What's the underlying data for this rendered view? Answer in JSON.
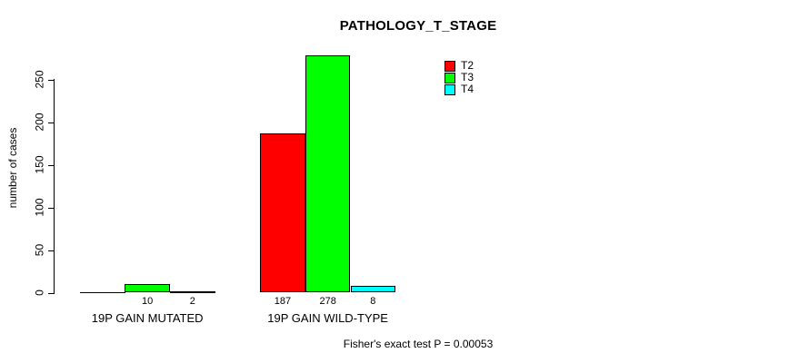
{
  "chart_data": {
    "type": "bar",
    "title": "PATHOLOGY_T_STAGE",
    "ylabel": "number of cases",
    "xlabel": "",
    "annotation": "Fisher's exact test P = 0.00053",
    "categories": [
      "19P GAIN MUTATED",
      "19P GAIN WILD-TYPE"
    ],
    "series": [
      {
        "name": "T2",
        "color": "#ff0000",
        "values": [
          0,
          187
        ]
      },
      {
        "name": "T3",
        "color": "#00ff00",
        "values": [
          10,
          278
        ]
      },
      {
        "name": "T4",
        "color": "#00ffff",
        "values": [
          2,
          8
        ]
      }
    ],
    "yticks": [
      0,
      50,
      100,
      150,
      200,
      250
    ],
    "ylim": [
      0,
      292
    ],
    "grid": false,
    "legend_position": "inside-top-right",
    "value_labels": "shown under each bar, zeros omitted",
    "bar_border_color": "#000000",
    "background_color": "#ffffff"
  }
}
